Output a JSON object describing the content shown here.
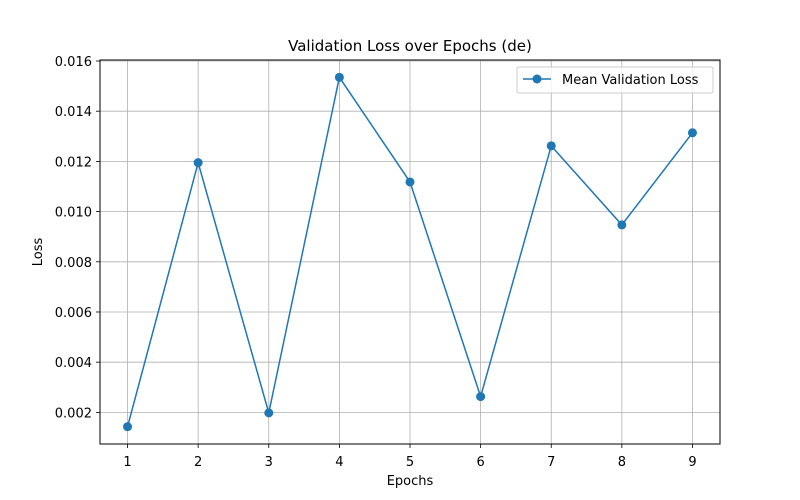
{
  "chart_data": {
    "type": "line",
    "title": "Validation Loss over Epochs (de)",
    "xlabel": "Epochs",
    "ylabel": "Loss",
    "x": [
      1,
      2,
      3,
      4,
      5,
      6,
      7,
      8,
      9
    ],
    "series": [
      {
        "name": "Mean Validation Loss",
        "values": [
          0.00143,
          0.01195,
          0.00198,
          0.01535,
          0.01118,
          0.00263,
          0.01262,
          0.00947,
          0.01314
        ],
        "color": "#1f77b4",
        "marker": "circle"
      }
    ],
    "xticks": [
      "1",
      "2",
      "3",
      "4",
      "5",
      "6",
      "7",
      "8",
      "9"
    ],
    "yticks": [
      "0.002",
      "0.004",
      "0.006",
      "0.008",
      "0.010",
      "0.012",
      "0.014",
      "0.016"
    ],
    "ytick_values": [
      0.002,
      0.004,
      0.006,
      0.008,
      0.01,
      0.012,
      0.014,
      0.016
    ],
    "xlim": [
      0.61,
      9.39
    ],
    "ylim": [
      0.00074,
      0.01604
    ],
    "grid": true,
    "legend_position": "top-right"
  }
}
